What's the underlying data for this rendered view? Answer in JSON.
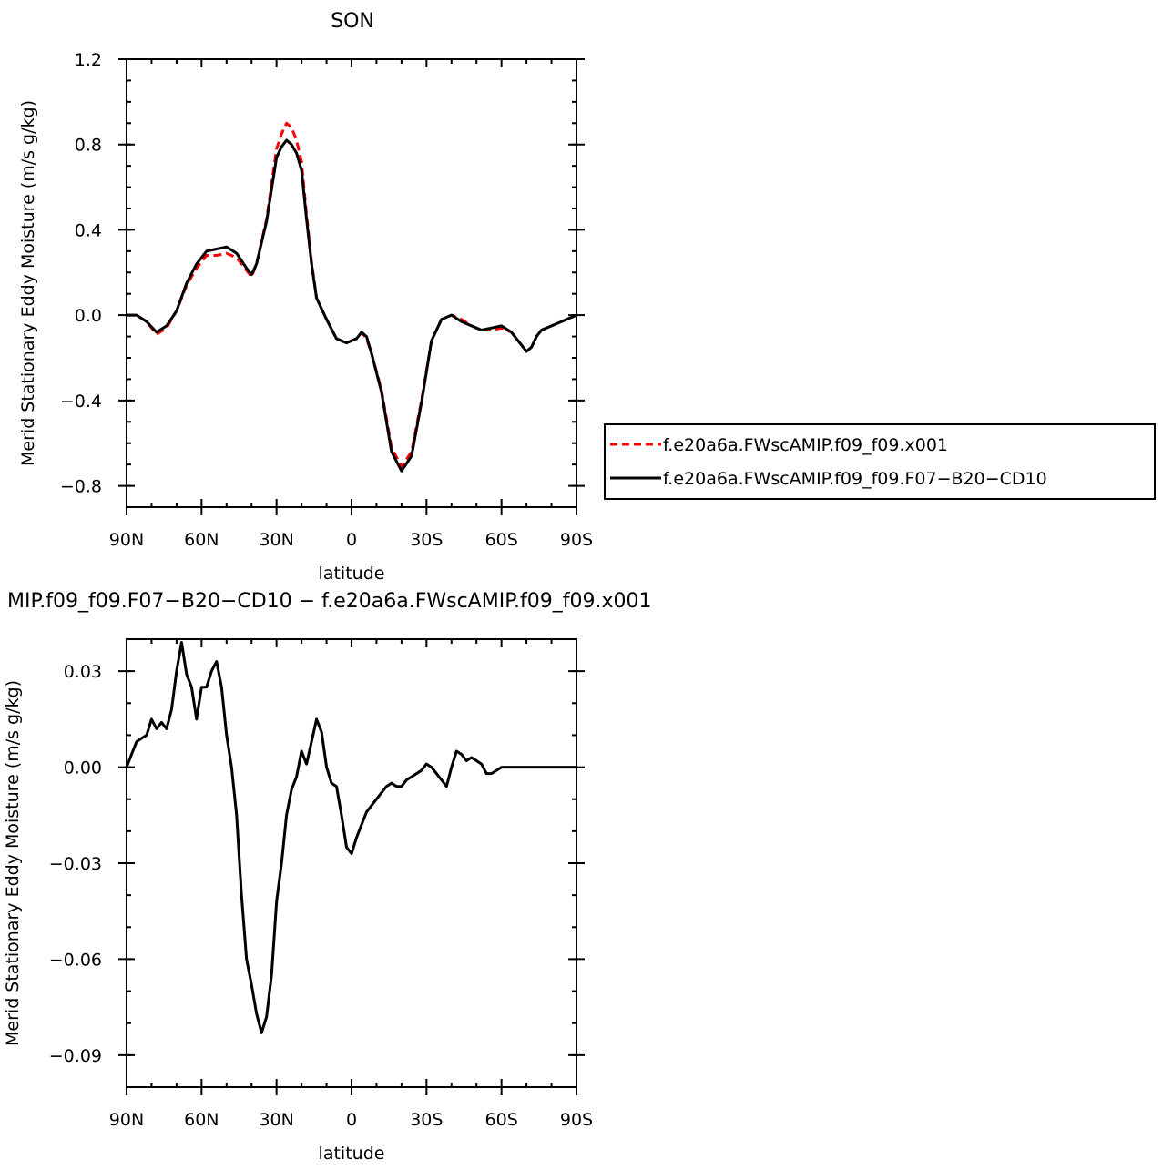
{
  "chart_data": [
    {
      "type": "line",
      "title": "SON",
      "xlabel": "latitude",
      "ylabel": "Merid Stationary Eddy Moisture (m/s g/kg)",
      "x_ticks": [
        "90N",
        "60N",
        "30N",
        "0",
        "30S",
        "60S",
        "90S"
      ],
      "y_ticks": [
        "1.2",
        "0.8",
        "0.4",
        "0.0",
        "−0.4",
        "−0.8"
      ],
      "y_tick_values": [
        1.2,
        0.8,
        0.4,
        0.0,
        -0.4,
        -0.8
      ],
      "xlim": [
        90,
        -90
      ],
      "ylim": [
        -0.9,
        1.2
      ],
      "legend_position": "right",
      "series": [
        {
          "name": "f.e20a6a.FWscAMIP.f09_f09.x001",
          "color": "#ff0000",
          "style": "dashed",
          "x": [
            90,
            86,
            82,
            78,
            74,
            70,
            66,
            62,
            58,
            54,
            50,
            46,
            42,
            40,
            38,
            34,
            30,
            28,
            26,
            24,
            22,
            20,
            18,
            16,
            14,
            10,
            6,
            2,
            -2,
            -4,
            -6,
            -8,
            -12,
            -16,
            -20,
            -24,
            -28,
            -32,
            -36,
            -40,
            -44,
            -48,
            -52,
            -56,
            -60,
            -64,
            -66,
            -68,
            -70,
            -72,
            -74,
            -76,
            -80,
            -84,
            -88,
            -90
          ],
          "y": [
            0.0,
            0.0,
            -0.03,
            -0.09,
            -0.06,
            0.02,
            0.14,
            0.22,
            0.28,
            0.28,
            0.29,
            0.27,
            0.21,
            0.18,
            0.24,
            0.45,
            0.78,
            0.85,
            0.9,
            0.88,
            0.82,
            0.72,
            0.47,
            0.25,
            0.08,
            -0.02,
            -0.11,
            -0.13,
            -0.11,
            -0.08,
            -0.11,
            -0.18,
            -0.35,
            -0.62,
            -0.71,
            -0.64,
            -0.4,
            -0.12,
            -0.02,
            0.0,
            -0.02,
            -0.05,
            -0.07,
            -0.07,
            -0.06,
            -0.08,
            -0.11,
            -0.14,
            -0.17,
            -0.15,
            -0.1,
            -0.07,
            -0.05,
            -0.03,
            -0.01,
            0.0
          ]
        },
        {
          "name": "f.e20a6a.FWscAMIP.f09_f09.F07−B20−CD10",
          "color": "#000000",
          "style": "solid",
          "x": [
            90,
            86,
            82,
            78,
            74,
            70,
            66,
            62,
            58,
            54,
            50,
            46,
            42,
            40,
            38,
            34,
            30,
            28,
            26,
            24,
            22,
            20,
            18,
            16,
            14,
            10,
            6,
            2,
            -2,
            -4,
            -6,
            -8,
            -12,
            -16,
            -20,
            -24,
            -28,
            -32,
            -36,
            -40,
            -44,
            -48,
            -52,
            -56,
            -60,
            -64,
            -66,
            -68,
            -70,
            -72,
            -74,
            -76,
            -80,
            -84,
            -88,
            -90
          ],
          "y": [
            0.0,
            0.0,
            -0.03,
            -0.08,
            -0.05,
            0.02,
            0.15,
            0.24,
            0.3,
            0.31,
            0.32,
            0.29,
            0.22,
            0.19,
            0.24,
            0.44,
            0.74,
            0.79,
            0.82,
            0.8,
            0.76,
            0.68,
            0.45,
            0.24,
            0.08,
            -0.02,
            -0.11,
            -0.13,
            -0.11,
            -0.08,
            -0.1,
            -0.18,
            -0.36,
            -0.64,
            -0.73,
            -0.66,
            -0.41,
            -0.12,
            -0.02,
            0.0,
            -0.03,
            -0.05,
            -0.07,
            -0.06,
            -0.05,
            -0.08,
            -0.11,
            -0.14,
            -0.17,
            -0.15,
            -0.1,
            -0.07,
            -0.05,
            -0.03,
            -0.01,
            0.0
          ]
        }
      ]
    },
    {
      "type": "line",
      "title": "MIP.f09_f09.F07−B20−CD10 − f.e20a6a.FWscAMIP.f09_f09.x001",
      "xlabel": "latitude",
      "ylabel": "Merid Stationary Eddy Moisture (m/s g/kg)",
      "x_ticks": [
        "90N",
        "60N",
        "30N",
        "0",
        "30S",
        "60S",
        "90S"
      ],
      "y_ticks": [
        "0.03",
        "0.00",
        "−0.03",
        "−0.06",
        "−0.09"
      ],
      "y_tick_values": [
        0.03,
        0.0,
        -0.03,
        -0.06,
        -0.09
      ],
      "xlim": [
        90,
        -90
      ],
      "ylim": [
        -0.1,
        0.04
      ],
      "series": [
        {
          "name": "",
          "color": "#000000",
          "style": "solid",
          "x": [
            90,
            88,
            86,
            84,
            82,
            80,
            78,
            76,
            74,
            72,
            70,
            68,
            66,
            64,
            62,
            60,
            58,
            56,
            54,
            52,
            50,
            48,
            46,
            44,
            42,
            40,
            38,
            36,
            34,
            32,
            30,
            28,
            26,
            24,
            22,
            20,
            18,
            16,
            14,
            12,
            10,
            8,
            6,
            4,
            2,
            0,
            -2,
            -4,
            -6,
            -8,
            -10,
            -12,
            -14,
            -16,
            -18,
            -20,
            -22,
            -24,
            -26,
            -28,
            -30,
            -32,
            -34,
            -36,
            -38,
            -40,
            -42,
            -44,
            -46,
            -48,
            -50,
            -52,
            -54,
            -56,
            -58,
            -60,
            -62,
            -64,
            -66,
            -68,
            -70,
            -72,
            -74,
            -76,
            -78,
            -80,
            -82,
            -84,
            -86,
            -88,
            -90
          ],
          "y": [
            0.0,
            0.004,
            0.008,
            0.009,
            0.01,
            0.015,
            0.012,
            0.014,
            0.012,
            0.018,
            0.03,
            0.039,
            0.029,
            0.025,
            0.015,
            0.025,
            0.025,
            0.03,
            0.033,
            0.025,
            0.01,
            0.0,
            -0.015,
            -0.04,
            -0.06,
            -0.068,
            -0.077,
            -0.083,
            -0.078,
            -0.065,
            -0.042,
            -0.03,
            -0.015,
            -0.007,
            -0.003,
            0.005,
            0.001,
            0.008,
            0.015,
            0.011,
            0.0,
            -0.005,
            -0.006,
            -0.015,
            -0.025,
            -0.027,
            -0.022,
            -0.018,
            -0.014,
            -0.012,
            -0.01,
            -0.008,
            -0.006,
            -0.005,
            -0.006,
            -0.006,
            -0.004,
            -0.003,
            -0.002,
            -0.001,
            0.001,
            0.0,
            -0.002,
            -0.004,
            -0.006,
            0.0,
            0.005,
            0.004,
            0.002,
            0.003,
            0.002,
            0.001,
            -0.002,
            -0.002,
            -0.001,
            0.0,
            0.0,
            0.0,
            0.0,
            0.0,
            0.0,
            0.0,
            0.0,
            0.0,
            0.0,
            0.0,
            0.0,
            0.0,
            0.0,
            0.0,
            0.0
          ]
        }
      ]
    }
  ]
}
